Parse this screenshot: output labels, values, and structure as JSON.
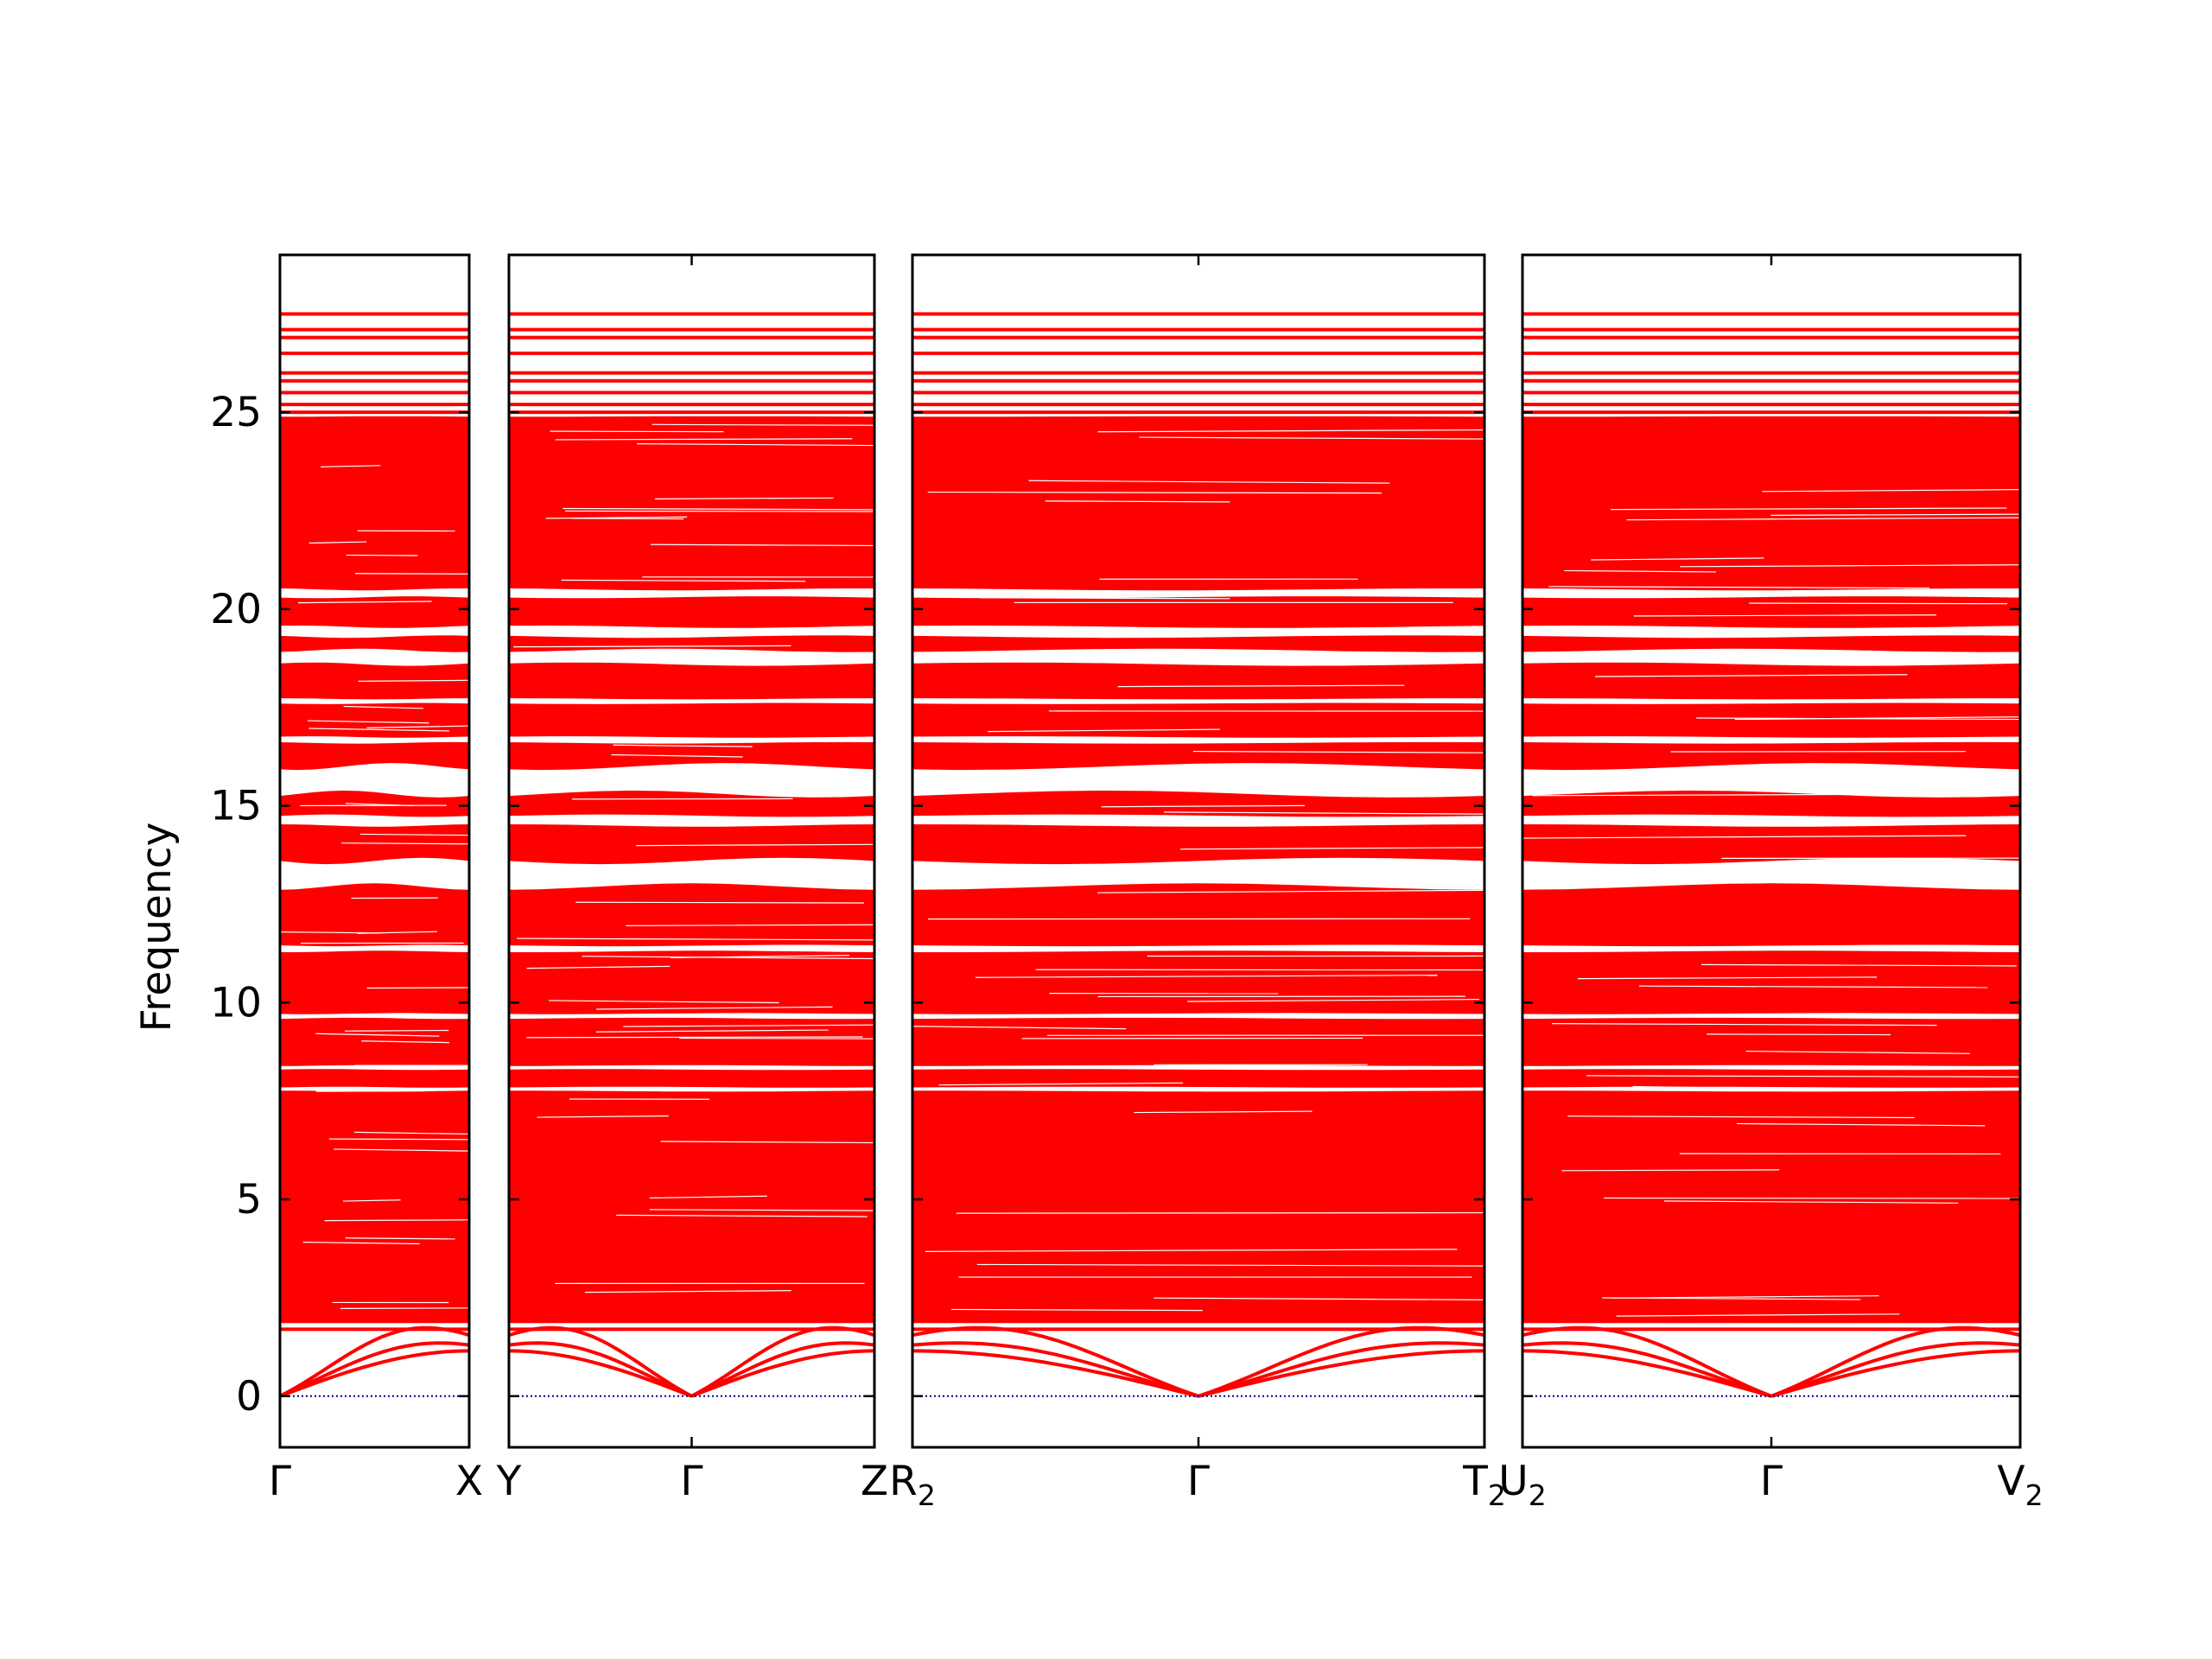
{
  "chart_data": {
    "type": "line",
    "title": "",
    "ylabel": "Frequency",
    "xlabel": "",
    "ylim": [
      -1.3,
      29
    ],
    "yticks": [
      0,
      5,
      10,
      15,
      20,
      25
    ],
    "grid": false,
    "legend": "none",
    "band_color": "#ff0000",
    "zero_line_color": "#00008b",
    "panels": [
      {
        "segments": [
          {
            "from": "Γ",
            "to": "X"
          }
        ],
        "labels": [
          {
            "main": "Γ",
            "sub": ""
          },
          {
            "main": "X",
            "sub": ""
          }
        ]
      },
      {
        "segments": [
          {
            "from": "Y",
            "to": "Γ"
          },
          {
            "from": "Γ",
            "to": "Z"
          }
        ],
        "labels": [
          {
            "main": "Y",
            "sub": ""
          },
          {
            "main": "Γ",
            "sub": ""
          },
          {
            "main": "Z",
            "sub": ""
          }
        ]
      },
      {
        "segments": [
          {
            "from": "R2",
            "to": "Γ"
          },
          {
            "from": "Γ",
            "to": "T2"
          }
        ],
        "labels": [
          {
            "main": "R",
            "sub": "2"
          },
          {
            "main": "Γ",
            "sub": ""
          },
          {
            "main": "T",
            "sub": "2"
          }
        ]
      },
      {
        "segments": [
          {
            "from": "U2",
            "to": "Γ"
          },
          {
            "from": "Γ",
            "to": "V2"
          }
        ],
        "labels": [
          {
            "main": "U",
            "sub": "2"
          },
          {
            "main": "Γ",
            "sub": ""
          },
          {
            "main": "V",
            "sub": "2"
          }
        ]
      }
    ],
    "band_structure": {
      "dense_region": [
        1.9,
        24.9
      ],
      "upper_bands": [
        25.0,
        25.2,
        25.5,
        25.8,
        26.0,
        26.5,
        26.9,
        27.1,
        27.5
      ],
      "gaps": [
        [
          12.95,
          13.6
        ],
        [
          15.3,
          16.0
        ],
        [
          18.6,
          18.95
        ],
        [
          14.5,
          14.75
        ],
        [
          19.3,
          19.55
        ],
        [
          20.3,
          20.5
        ],
        [
          11.3,
          11.45
        ],
        [
          9.6,
          9.72
        ],
        [
          8.3,
          8.4
        ],
        [
          7.75,
          7.85
        ],
        [
          16.6,
          16.75
        ],
        [
          17.6,
          17.72
        ],
        [
          24.9,
          25.0
        ]
      ],
      "acoustic": {
        "gamma_value": 0,
        "zone_edge_values": [
          1.15,
          1.3,
          1.55
        ],
        "low_optical": [
          1.7,
          1.9
        ]
      }
    }
  }
}
